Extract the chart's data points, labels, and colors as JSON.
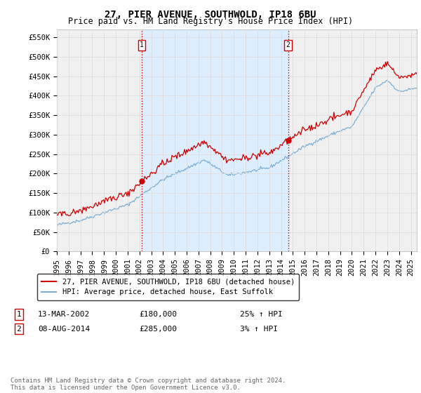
{
  "title": "27, PIER AVENUE, SOUTHWOLD, IP18 6BU",
  "subtitle": "Price paid vs. HM Land Registry's House Price Index (HPI)",
  "ylabel_ticks": [
    "£0",
    "£50K",
    "£100K",
    "£150K",
    "£200K",
    "£250K",
    "£300K",
    "£350K",
    "£400K",
    "£450K",
    "£500K",
    "£550K"
  ],
  "ytick_values": [
    0,
    50000,
    100000,
    150000,
    200000,
    250000,
    300000,
    350000,
    400000,
    450000,
    500000,
    550000
  ],
  "ylim": [
    0,
    570000
  ],
  "xlim_start": 1995.0,
  "xlim_end": 2025.5,
  "xtick_years": [
    1995,
    1996,
    1997,
    1998,
    1999,
    2000,
    2001,
    2002,
    2003,
    2004,
    2005,
    2006,
    2007,
    2008,
    2009,
    2010,
    2011,
    2012,
    2013,
    2014,
    2015,
    2016,
    2017,
    2018,
    2019,
    2020,
    2021,
    2022,
    2023,
    2024,
    2025
  ],
  "legend_line1_color": "#cc0000",
  "legend_line1_label": "27, PIER AVENUE, SOUTHWOLD, IP18 6BU (detached house)",
  "legend_line2_color": "#7aafd4",
  "legend_line2_label": "HPI: Average price, detached house, East Suffolk",
  "sale1_x": 2002.2,
  "sale1_y": 180000,
  "sale1_label": "1",
  "sale2_x": 2014.6,
  "sale2_y": 285000,
  "sale2_label": "2",
  "vline1_x": 2002.2,
  "vline2_x": 2014.6,
  "vline_color": "#cc0000",
  "shade_color": "#ddeeff",
  "background_color": "#ffffff",
  "plot_bg_color": "#f0f0f0",
  "grid_color": "#dddddd",
  "title_fontsize": 10,
  "subtitle_fontsize": 8.5,
  "tick_fontsize": 7.5,
  "legend_fontsize": 7.5,
  "table_fontsize": 8,
  "footer_fontsize": 6.5,
  "footer_text": "Contains HM Land Registry data © Crown copyright and database right 2024.\nThis data is licensed under the Open Government Licence v3.0."
}
